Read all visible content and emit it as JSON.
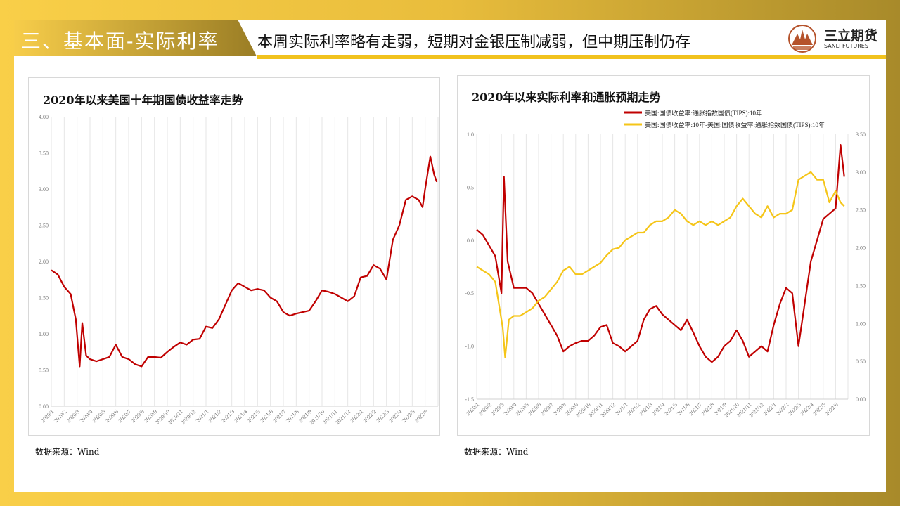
{
  "header": {
    "section_title": "三、基本面-实际利率",
    "subtitle": "本周实际利率略有走弱，短期对金银压制减弱，但中期压制仍存",
    "logo_name": "三立期货",
    "logo_en": "SANLI FUTURES"
  },
  "colors": {
    "red": "#c00000",
    "yellow": "#f5c518"
  },
  "chart_data": [
    {
      "type": "line",
      "title": "2020年以来美国十年期国债收益率走势",
      "source": "数据来源：Wind",
      "ylim": [
        0,
        4
      ],
      "yticks": [
        "0.00",
        "0.50",
        "1.00",
        "1.50",
        "2.00",
        "2.50",
        "3.00",
        "3.50",
        "4.00"
      ],
      "xticks": [
        "2020/1",
        "2020/2",
        "2020/3",
        "2020/4",
        "2020/5",
        "2020/6",
        "2020/7",
        "2020/8",
        "2020/9",
        "2020/10",
        "2020/11",
        "2020/12",
        "2021/1",
        "2021/2",
        "2021/3",
        "2021/4",
        "2021/5",
        "2021/6",
        "2021/7",
        "2021/8",
        "2021/9",
        "2021/10",
        "2021/11",
        "2021/12",
        "2022/1",
        "2022/2",
        "2022/3",
        "2022/4",
        "2022/5",
        "2022/6"
      ],
      "x_unit": "months since 2020/1",
      "grid": true,
      "series": [
        {
          "name": "美国10年期国债收益率",
          "color": "#c00000",
          "points": [
            [
              0,
              1.88
            ],
            [
              0.5,
              1.82
            ],
            [
              1,
              1.65
            ],
            [
              1.5,
              1.55
            ],
            [
              1.9,
              1.2
            ],
            [
              2.2,
              0.55
            ],
            [
              2.4,
              1.15
            ],
            [
              2.7,
              0.7
            ],
            [
              3,
              0.65
            ],
            [
              3.5,
              0.62
            ],
            [
              4,
              0.65
            ],
            [
              4.5,
              0.68
            ],
            [
              5,
              0.85
            ],
            [
              5.5,
              0.68
            ],
            [
              6,
              0.65
            ],
            [
              6.5,
              0.58
            ],
            [
              7,
              0.55
            ],
            [
              7.5,
              0.68
            ],
            [
              8,
              0.68
            ],
            [
              8.5,
              0.67
            ],
            [
              9,
              0.75
            ],
            [
              9.5,
              0.82
            ],
            [
              10,
              0.88
            ],
            [
              10.5,
              0.85
            ],
            [
              11,
              0.92
            ],
            [
              11.5,
              0.93
            ],
            [
              12,
              1.1
            ],
            [
              12.5,
              1.08
            ],
            [
              13,
              1.2
            ],
            [
              13.5,
              1.4
            ],
            [
              14,
              1.6
            ],
            [
              14.5,
              1.7
            ],
            [
              15,
              1.65
            ],
            [
              15.5,
              1.6
            ],
            [
              16,
              1.62
            ],
            [
              16.5,
              1.6
            ],
            [
              17,
              1.5
            ],
            [
              17.5,
              1.45
            ],
            [
              18,
              1.3
            ],
            [
              18.5,
              1.25
            ],
            [
              19,
              1.28
            ],
            [
              19.5,
              1.3
            ],
            [
              20,
              1.32
            ],
            [
              20.5,
              1.45
            ],
            [
              21,
              1.6
            ],
            [
              21.5,
              1.58
            ],
            [
              22,
              1.55
            ],
            [
              22.5,
              1.5
            ],
            [
              23,
              1.45
            ],
            [
              23.5,
              1.52
            ],
            [
              24,
              1.78
            ],
            [
              24.5,
              1.8
            ],
            [
              25,
              1.95
            ],
            [
              25.5,
              1.9
            ],
            [
              26,
              1.75
            ],
            [
              26.5,
              2.3
            ],
            [
              27,
              2.5
            ],
            [
              27.5,
              2.85
            ],
            [
              28,
              2.9
            ],
            [
              28.5,
              2.85
            ],
            [
              28.8,
              2.75
            ],
            [
              29,
              3.0
            ],
            [
              29.4,
              3.45
            ],
            [
              29.7,
              3.2
            ],
            [
              29.9,
              3.1
            ]
          ]
        }
      ]
    },
    {
      "type": "line",
      "title": "2020年以来实际利率和通胀预期走势",
      "source": "数据来源：Wind",
      "ylim": [
        -1.5,
        1.0
      ],
      "ylim_right": [
        0,
        3.5
      ],
      "yticks": [
        "-1.5",
        "-1.0",
        "-0.5",
        "0.0",
        "0.5",
        "1.0"
      ],
      "yticks_right": [
        "0.00",
        "0.50",
        "1.00",
        "1.50",
        "2.00",
        "2.50",
        "3.00",
        "3.50"
      ],
      "xticks": [
        "2020/1",
        "2020/2",
        "2020/3",
        "2020/4",
        "2020/5",
        "2020/6",
        "2020/7",
        "2020/8",
        "2020/9",
        "2020/10",
        "2020/11",
        "2020/12",
        "2021/1",
        "2021/2",
        "2021/3",
        "2021/4",
        "2021/5",
        "2021/6",
        "2021/7",
        "2021/8",
        "2021/9",
        "2021/10",
        "2021/11",
        "2021/12",
        "2022/1",
        "2022/2",
        "2022/3",
        "2022/4",
        "2022/5",
        "2022/6"
      ],
      "x_unit": "months since 2020/1",
      "grid": true,
      "legend_position": "top-right",
      "series": [
        {
          "name": "美国:国债收益率:通胀指数国债(TIPS):10年",
          "axis": "left",
          "color": "#c00000",
          "points": [
            [
              0,
              0.1
            ],
            [
              0.5,
              0.05
            ],
            [
              1,
              -0.05
            ],
            [
              1.5,
              -0.15
            ],
            [
              2,
              -0.5
            ],
            [
              2.2,
              0.6
            ],
            [
              2.5,
              -0.2
            ],
            [
              3,
              -0.45
            ],
            [
              3.5,
              -0.45
            ],
            [
              4,
              -0.45
            ],
            [
              4.5,
              -0.5
            ],
            [
              5,
              -0.6
            ],
            [
              5.5,
              -0.7
            ],
            [
              6,
              -0.8
            ],
            [
              6.5,
              -0.9
            ],
            [
              7,
              -1.05
            ],
            [
              7.5,
              -1.0
            ],
            [
              8,
              -0.97
            ],
            [
              8.5,
              -0.95
            ],
            [
              9,
              -0.95
            ],
            [
              9.5,
              -0.9
            ],
            [
              10,
              -0.82
            ],
            [
              10.5,
              -0.8
            ],
            [
              11,
              -0.97
            ],
            [
              11.5,
              -1.0
            ],
            [
              12,
              -1.05
            ],
            [
              12.5,
              -1.0
            ],
            [
              13,
              -0.95
            ],
            [
              13.5,
              -0.75
            ],
            [
              14,
              -0.65
            ],
            [
              14.5,
              -0.62
            ],
            [
              15,
              -0.7
            ],
            [
              15.5,
              -0.75
            ],
            [
              16,
              -0.8
            ],
            [
              16.5,
              -0.85
            ],
            [
              17,
              -0.75
            ],
            [
              17.5,
              -0.87
            ],
            [
              18,
              -1.0
            ],
            [
              18.5,
              -1.1
            ],
            [
              19,
              -1.15
            ],
            [
              19.5,
              -1.1
            ],
            [
              20,
              -1.0
            ],
            [
              20.5,
              -0.95
            ],
            [
              21,
              -0.85
            ],
            [
              21.5,
              -0.95
            ],
            [
              22,
              -1.1
            ],
            [
              22.5,
              -1.05
            ],
            [
              23,
              -1.0
            ],
            [
              23.5,
              -1.05
            ],
            [
              24,
              -0.8
            ],
            [
              24.5,
              -0.6
            ],
            [
              25,
              -0.45
            ],
            [
              25.5,
              -0.5
            ],
            [
              26,
              -1.0
            ],
            [
              26.5,
              -0.6
            ],
            [
              27,
              -0.2
            ],
            [
              27.5,
              0.0
            ],
            [
              28,
              0.2
            ],
            [
              28.5,
              0.25
            ],
            [
              29,
              0.3
            ],
            [
              29.4,
              0.9
            ],
            [
              29.7,
              0.6
            ]
          ]
        },
        {
          "name": "美国:国债收益率:10年-美国:国债收益率:通胀指数国债(TIPS):10年",
          "axis": "right",
          "color": "#f5c518",
          "points": [
            [
              0,
              1.75
            ],
            [
              0.5,
              1.7
            ],
            [
              1,
              1.65
            ],
            [
              1.5,
              1.55
            ],
            [
              2.1,
              0.95
            ],
            [
              2.3,
              0.55
            ],
            [
              2.6,
              1.05
            ],
            [
              3,
              1.1
            ],
            [
              3.5,
              1.1
            ],
            [
              4,
              1.15
            ],
            [
              4.5,
              1.2
            ],
            [
              5,
              1.3
            ],
            [
              5.5,
              1.35
            ],
            [
              6,
              1.45
            ],
            [
              6.5,
              1.55
            ],
            [
              7,
              1.7
            ],
            [
              7.5,
              1.75
            ],
            [
              8,
              1.65
            ],
            [
              8.5,
              1.65
            ],
            [
              9,
              1.7
            ],
            [
              9.5,
              1.75
            ],
            [
              10,
              1.8
            ],
            [
              10.5,
              1.9
            ],
            [
              11,
              1.98
            ],
            [
              11.5,
              2.0
            ],
            [
              12,
              2.1
            ],
            [
              12.5,
              2.15
            ],
            [
              13,
              2.2
            ],
            [
              13.5,
              2.2
            ],
            [
              14,
              2.3
            ],
            [
              14.5,
              2.35
            ],
            [
              15,
              2.35
            ],
            [
              15.5,
              2.4
            ],
            [
              16,
              2.5
            ],
            [
              16.5,
              2.45
            ],
            [
              17,
              2.35
            ],
            [
              17.5,
              2.3
            ],
            [
              18,
              2.35
            ],
            [
              18.5,
              2.3
            ],
            [
              19,
              2.35
            ],
            [
              19.5,
              2.3
            ],
            [
              20,
              2.35
            ],
            [
              20.5,
              2.4
            ],
            [
              21,
              2.55
            ],
            [
              21.5,
              2.65
            ],
            [
              22,
              2.55
            ],
            [
              22.5,
              2.45
            ],
            [
              23,
              2.4
            ],
            [
              23.5,
              2.55
            ],
            [
              24,
              2.4
            ],
            [
              24.5,
              2.45
            ],
            [
              25,
              2.45
            ],
            [
              25.5,
              2.5
            ],
            [
              26,
              2.9
            ],
            [
              26.5,
              2.95
            ],
            [
              27,
              3.0
            ],
            [
              27.5,
              2.9
            ],
            [
              28,
              2.9
            ],
            [
              28.5,
              2.6
            ],
            [
              29,
              2.75
            ],
            [
              29.4,
              2.6
            ],
            [
              29.7,
              2.55
            ]
          ]
        }
      ]
    }
  ]
}
